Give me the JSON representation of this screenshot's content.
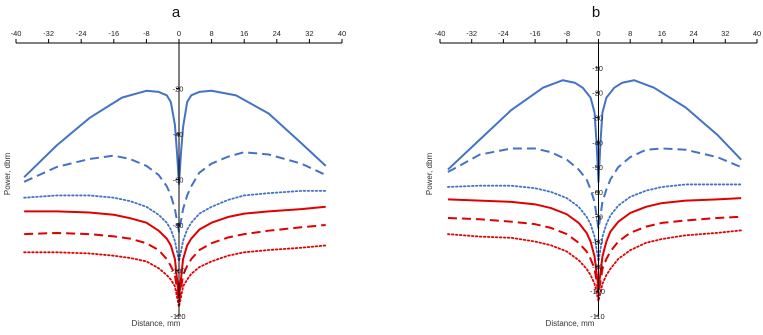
{
  "chart_data": [
    {
      "type": "line",
      "panel_label": "a",
      "xlabel": "Distance, mm",
      "ylabel": "Power, dbm",
      "xlim": [
        -40,
        40
      ],
      "ylim": [
        -120,
        0
      ],
      "x_ticks": [
        -40,
        -32,
        -24,
        -16,
        -8,
        0,
        8,
        16,
        24,
        32,
        40
      ],
      "y_ticks": [
        -20,
        -40,
        -60,
        -80,
        -100,
        -120
      ],
      "grid": false,
      "series": [
        {
          "color": "#4472C4",
          "style": "solid",
          "points": [
            [
              -38,
              -59
            ],
            [
              -30,
              -45
            ],
            [
              -22,
              -33
            ],
            [
              -14,
              -24
            ],
            [
              -8,
              -21
            ],
            [
              -5,
              -21.5
            ],
            [
              -3,
              -23
            ],
            [
              -2,
              -26
            ],
            [
              -1,
              -36
            ],
            [
              -0.5,
              -48
            ],
            [
              0,
              -62
            ],
            [
              0.5,
              -48
            ],
            [
              1,
              -37
            ],
            [
              2,
              -26
            ],
            [
              3,
              -23
            ],
            [
              5,
              -21.5
            ],
            [
              8,
              -21
            ],
            [
              14,
              -23
            ],
            [
              22,
              -31
            ],
            [
              30,
              -44
            ],
            [
              36,
              -54
            ]
          ]
        },
        {
          "color": "#4472C4",
          "style": "dash",
          "points": [
            [
              -38,
              -61
            ],
            [
              -30,
              -54.5
            ],
            [
              -22,
              -51
            ],
            [
              -16,
              -49.5
            ],
            [
              -12,
              -51
            ],
            [
              -8,
              -54
            ],
            [
              -5,
              -58
            ],
            [
              -3,
              -63
            ],
            [
              -2,
              -67
            ],
            [
              -1,
              -73
            ],
            [
              0,
              -83
            ],
            [
              1,
              -73
            ],
            [
              2,
              -67
            ],
            [
              3,
              -63
            ],
            [
              5,
              -57
            ],
            [
              8,
              -53
            ],
            [
              12,
              -50
            ],
            [
              16,
              -48
            ],
            [
              22,
              -49
            ],
            [
              30,
              -53
            ],
            [
              36,
              -58
            ]
          ]
        },
        {
          "color": "#4472C4",
          "style": "dot",
          "points": [
            [
              -38,
              -68
            ],
            [
              -30,
              -67
            ],
            [
              -22,
              -67
            ],
            [
              -16,
              -68
            ],
            [
              -12,
              -69.5
            ],
            [
              -8,
              -72
            ],
            [
              -5,
              -75.5
            ],
            [
              -3,
              -79
            ],
            [
              -2,
              -82
            ],
            [
              -1,
              -87
            ],
            [
              0,
              -96
            ],
            [
              1,
              -87
            ],
            [
              2,
              -82
            ],
            [
              3,
              -79
            ],
            [
              5,
              -75
            ],
            [
              8,
              -72
            ],
            [
              12,
              -69
            ],
            [
              16,
              -67
            ],
            [
              22,
              -66
            ],
            [
              30,
              -65
            ],
            [
              36,
              -65
            ]
          ]
        },
        {
          "color": "#E00000",
          "style": "solid",
          "points": [
            [
              -38,
              -74
            ],
            [
              -30,
              -74
            ],
            [
              -22,
              -74.5
            ],
            [
              -16,
              -75.5
            ],
            [
              -12,
              -77
            ],
            [
              -8,
              -79
            ],
            [
              -5,
              -82.5
            ],
            [
              -3,
              -86
            ],
            [
              -2,
              -89
            ],
            [
              -1,
              -95
            ],
            [
              0,
              -112
            ],
            [
              1,
              -95
            ],
            [
              2,
              -89
            ],
            [
              3,
              -86
            ],
            [
              5,
              -82
            ],
            [
              8,
              -79
            ],
            [
              12,
              -76.5
            ],
            [
              16,
              -75
            ],
            [
              22,
              -74
            ],
            [
              30,
              -73
            ],
            [
              36,
              -72
            ]
          ]
        },
        {
          "color": "#E00000",
          "style": "dash",
          "points": [
            [
              -38,
              -84
            ],
            [
              -30,
              -83.5
            ],
            [
              -22,
              -84
            ],
            [
              -16,
              -85
            ],
            [
              -12,
              -86
            ],
            [
              -8,
              -88
            ],
            [
              -5,
              -91
            ],
            [
              -3,
              -95
            ],
            [
              -2,
              -98
            ],
            [
              -1,
              -102
            ],
            [
              0,
              -114
            ],
            [
              1,
              -102
            ],
            [
              2,
              -98
            ],
            [
              3,
              -95
            ],
            [
              5,
              -91
            ],
            [
              8,
              -88
            ],
            [
              12,
              -85.5
            ],
            [
              16,
              -84
            ],
            [
              22,
              -82.5
            ],
            [
              30,
              -81
            ],
            [
              36,
              -80
            ]
          ]
        },
        {
          "color": "#E00000",
          "style": "dot",
          "points": [
            [
              -38,
              -92
            ],
            [
              -30,
              -92
            ],
            [
              -22,
              -92.5
            ],
            [
              -16,
              -93.5
            ],
            [
              -12,
              -94.5
            ],
            [
              -8,
              -96
            ],
            [
              -5,
              -99
            ],
            [
              -3,
              -102
            ],
            [
              -2,
              -104
            ],
            [
              -1,
              -107
            ],
            [
              0,
              -116
            ],
            [
              1,
              -107
            ],
            [
              2,
              -104
            ],
            [
              3,
              -101.5
            ],
            [
              5,
              -98.5
            ],
            [
              8,
              -96
            ],
            [
              12,
              -93.5
            ],
            [
              16,
              -92
            ],
            [
              22,
              -91
            ],
            [
              30,
              -90
            ],
            [
              36,
              -89
            ]
          ]
        }
      ]
    },
    {
      "type": "line",
      "panel_label": "b",
      "xlabel": "Distance, mm",
      "ylabel": "Power, dbm",
      "xlim": [
        -40,
        40
      ],
      "ylim": [
        -110,
        0
      ],
      "x_ticks": [
        -40,
        -32,
        -24,
        -16,
        -8,
        0,
        8,
        16,
        24,
        32,
        40
      ],
      "y_ticks": [
        -10,
        -20,
        -30,
        -40,
        -50,
        -60,
        -70,
        -80,
        -90,
        -100,
        -110
      ],
      "grid": false,
      "series": [
        {
          "color": "#4472C4",
          "style": "solid",
          "points": [
            [
              -38,
              -51
            ],
            [
              -30,
              -39
            ],
            [
              -22,
              -27
            ],
            [
              -14,
              -18
            ],
            [
              -9,
              -15
            ],
            [
              -6,
              -16
            ],
            [
              -4,
              -18
            ],
            [
              -2,
              -22
            ],
            [
              -1,
              -28
            ],
            [
              -0.5,
              -40
            ],
            [
              0,
              -56
            ],
            [
              0.5,
              -40
            ],
            [
              1,
              -28
            ],
            [
              2,
              -22
            ],
            [
              4,
              -18
            ],
            [
              6,
              -16
            ],
            [
              9,
              -15
            ],
            [
              14,
              -18
            ],
            [
              22,
              -26
            ],
            [
              30,
              -37
            ],
            [
              36,
              -47
            ]
          ]
        },
        {
          "color": "#4472C4",
          "style": "dash",
          "points": [
            [
              -38,
              -52
            ],
            [
              -30,
              -45
            ],
            [
              -22,
              -42.5
            ],
            [
              -16,
              -42.5
            ],
            [
              -12,
              -44
            ],
            [
              -8,
              -47
            ],
            [
              -5,
              -51
            ],
            [
              -3,
              -55
            ],
            [
              -2,
              -59
            ],
            [
              -1,
              -64
            ],
            [
              0,
              -75
            ],
            [
              1,
              -64
            ],
            [
              2,
              -59
            ],
            [
              3,
              -55
            ],
            [
              5,
              -50
            ],
            [
              8,
              -46
            ],
            [
              12,
              -43
            ],
            [
              16,
              -42.5
            ],
            [
              22,
              -43
            ],
            [
              30,
              -46
            ],
            [
              36,
              -50
            ]
          ]
        },
        {
          "color": "#4472C4",
          "style": "dot",
          "points": [
            [
              -38,
              -58
            ],
            [
              -30,
              -57.5
            ],
            [
              -22,
              -57.5
            ],
            [
              -16,
              -58.5
            ],
            [
              -12,
              -60
            ],
            [
              -8,
              -62.5
            ],
            [
              -5,
              -66
            ],
            [
              -3,
              -70
            ],
            [
              -2,
              -73
            ],
            [
              -1,
              -78
            ],
            [
              0,
              -88
            ],
            [
              1,
              -78
            ],
            [
              2,
              -73
            ],
            [
              3,
              -69.5
            ],
            [
              5,
              -65.5
            ],
            [
              8,
              -62
            ],
            [
              12,
              -59.5
            ],
            [
              16,
              -58
            ],
            [
              22,
              -57
            ],
            [
              30,
              -57
            ],
            [
              36,
              -57
            ]
          ]
        },
        {
          "color": "#E00000",
          "style": "solid",
          "points": [
            [
              -38,
              -63
            ],
            [
              -30,
              -63.5
            ],
            [
              -22,
              -64
            ],
            [
              -16,
              -65
            ],
            [
              -12,
              -66.5
            ],
            [
              -8,
              -69
            ],
            [
              -5,
              -72.5
            ],
            [
              -3,
              -76.5
            ],
            [
              -2,
              -80
            ],
            [
              -1,
              -86
            ],
            [
              0,
              -99
            ],
            [
              1,
              -86
            ],
            [
              2,
              -80
            ],
            [
              3,
              -76
            ],
            [
              5,
              -72
            ],
            [
              8,
              -68.5
            ],
            [
              12,
              -66
            ],
            [
              16,
              -64.5
            ],
            [
              22,
              -63.5
            ],
            [
              30,
              -63
            ],
            [
              36,
              -62.5
            ]
          ]
        },
        {
          "color": "#E00000",
          "style": "dash",
          "points": [
            [
              -38,
              -70.5
            ],
            [
              -30,
              -71
            ],
            [
              -22,
              -72
            ],
            [
              -16,
              -73
            ],
            [
              -12,
              -74.5
            ],
            [
              -8,
              -77
            ],
            [
              -5,
              -80.5
            ],
            [
              -3,
              -84
            ],
            [
              -2,
              -87
            ],
            [
              -1,
              -91
            ],
            [
              0,
              -101
            ],
            [
              1,
              -91
            ],
            [
              2,
              -87
            ],
            [
              3,
              -84
            ],
            [
              5,
              -80
            ],
            [
              8,
              -76.5
            ],
            [
              12,
              -74
            ],
            [
              16,
              -72.5
            ],
            [
              22,
              -71.5
            ],
            [
              30,
              -70.5
            ],
            [
              36,
              -70
            ]
          ]
        },
        {
          "color": "#E00000",
          "style": "dot",
          "points": [
            [
              -38,
              -77
            ],
            [
              -30,
              -78
            ],
            [
              -22,
              -78.5
            ],
            [
              -16,
              -80
            ],
            [
              -12,
              -81.5
            ],
            [
              -8,
              -84
            ],
            [
              -5,
              -87.5
            ],
            [
              -3,
              -91
            ],
            [
              -2,
              -93.5
            ],
            [
              -1,
              -97
            ],
            [
              0,
              -104
            ],
            [
              1,
              -97
            ],
            [
              2,
              -93.5
            ],
            [
              3,
              -91
            ],
            [
              5,
              -87
            ],
            [
              8,
              -83.5
            ],
            [
              12,
              -80.5
            ],
            [
              16,
              -79
            ],
            [
              22,
              -77.5
            ],
            [
              30,
              -76.5
            ],
            [
              36,
              -75.5
            ]
          ]
        }
      ]
    }
  ]
}
